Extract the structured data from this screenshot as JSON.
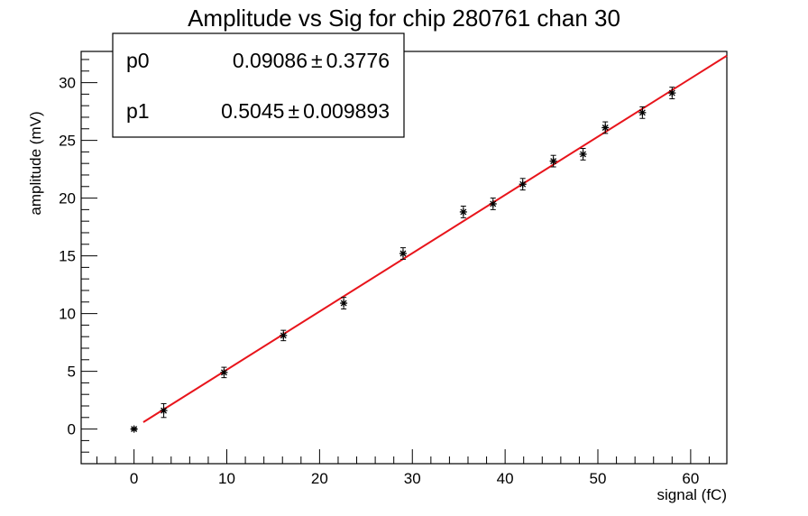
{
  "chart_data": {
    "type": "scatter",
    "title": "Amplitude vs Sig for chip 280761 chan 30",
    "xlabel": "signal (fC)",
    "ylabel": "amplitude (mV)",
    "xlim": [
      -5.7,
      63.9
    ],
    "ylim": [
      -3.0,
      32.7
    ],
    "x_ticks": [
      0,
      10,
      20,
      30,
      40,
      50,
      60
    ],
    "y_ticks": [
      0,
      5,
      10,
      15,
      20,
      25,
      30
    ],
    "grid": false,
    "points": [
      {
        "x": 0.0,
        "y": 0.0,
        "err": 0.1
      },
      {
        "x": 3.2,
        "y": 1.6,
        "err": 0.6
      },
      {
        "x": 9.7,
        "y": 4.9,
        "err": 0.45
      },
      {
        "x": 16.1,
        "y": 8.1,
        "err": 0.45
      },
      {
        "x": 22.6,
        "y": 10.9,
        "err": 0.5
      },
      {
        "x": 29.0,
        "y": 15.2,
        "err": 0.5
      },
      {
        "x": 35.5,
        "y": 18.8,
        "err": 0.5
      },
      {
        "x": 38.7,
        "y": 19.5,
        "err": 0.5
      },
      {
        "x": 41.9,
        "y": 21.2,
        "err": 0.5
      },
      {
        "x": 45.2,
        "y": 23.2,
        "err": 0.5
      },
      {
        "x": 48.4,
        "y": 23.8,
        "err": 0.5
      },
      {
        "x": 50.8,
        "y": 26.1,
        "err": 0.5
      },
      {
        "x": 54.8,
        "y": 27.4,
        "err": 0.5
      },
      {
        "x": 58.0,
        "y": 29.1,
        "err": 0.5
      }
    ],
    "fit": {
      "p0": 0.09086,
      "p1": 0.5045,
      "x_range": [
        1.0,
        63.9
      ],
      "color": "#e8141b"
    },
    "stats_box": {
      "rows": [
        {
          "name": "p0",
          "value": "0.09086",
          "error": "0.3776"
        },
        {
          "name": "p1",
          "value": "0.5045",
          "error": "0.009893"
        }
      ],
      "pm_symbol": "±",
      "placement": "top-left"
    }
  }
}
